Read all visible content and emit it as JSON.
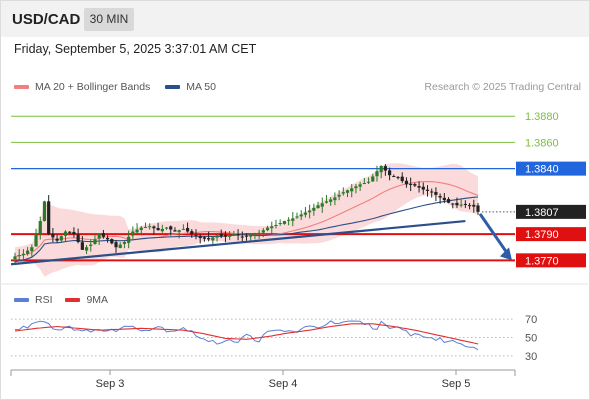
{
  "header": {
    "symbol": "USD/CAD",
    "timeframe": "30 MIN"
  },
  "datetime": "Friday, September 5, 2025 3:37:01 AM CET",
  "credit": "Research © 2025 Trading Central",
  "colors": {
    "bullish": "#2a7a2a",
    "bearish": "#222222",
    "bollinger_fill": "#f9d3d3",
    "ma20": "#f08080",
    "ma50": "#2c4f8a",
    "trendline": "#2c4f8a",
    "resistance": "#7cbf3f",
    "pivot": "#2266dd",
    "support": "#e01010",
    "last": "#222222",
    "arrow": "#2c5ea8",
    "rsi": "#5b7fd6",
    "rsi_ma": "#e03030"
  },
  "chart_data": [
    {
      "type": "candlestick",
      "legend": [
        {
          "label": "MA 20 + Bollinger Bands",
          "color": "#f08080",
          "icon": "bollinger-swatch"
        },
        {
          "label": "MA 50",
          "color": "#2c4f8a",
          "icon": "ma50-swatch"
        }
      ],
      "x_ticks": [
        "Sep 3",
        "Sep 4",
        "Sep 5"
      ],
      "ylim": [
        1.3755,
        1.39
      ],
      "levels": [
        {
          "label": "1.3880",
          "value": 1.388,
          "kind": "resistance"
        },
        {
          "label": "1.3860",
          "value": 1.386,
          "kind": "resistance"
        },
        {
          "label": "1.3840",
          "value": 1.384,
          "kind": "pivot"
        },
        {
          "label": "1.3807",
          "value": 1.3807,
          "kind": "last"
        },
        {
          "label": "1.3790",
          "value": 1.379,
          "kind": "support"
        },
        {
          "label": "1.3770",
          "value": 1.377,
          "kind": "support"
        }
      ],
      "anchors": [
        [
          0,
          1.3773
        ],
        [
          2,
          1.3775
        ],
        [
          4,
          1.378
        ],
        [
          6,
          1.38
        ],
        [
          7,
          1.3815
        ],
        [
          8,
          1.379
        ],
        [
          10,
          1.3785
        ],
        [
          12,
          1.3792
        ],
        [
          14,
          1.379
        ],
        [
          16,
          1.3778
        ],
        [
          18,
          1.3782
        ],
        [
          20,
          1.379
        ],
        [
          22,
          1.3786
        ],
        [
          24,
          1.378
        ],
        [
          26,
          1.3784
        ],
        [
          28,
          1.3792
        ],
        [
          30,
          1.3795
        ],
        [
          32,
          1.3796
        ],
        [
          34,
          1.3793
        ],
        [
          36,
          1.3795
        ],
        [
          38,
          1.3792
        ],
        [
          40,
          1.3794
        ],
        [
          42,
          1.379
        ],
        [
          44,
          1.3787
        ],
        [
          46,
          1.3786
        ],
        [
          48,
          1.3789
        ],
        [
          50,
          1.3788
        ],
        [
          52,
          1.379
        ],
        [
          54,
          1.3788
        ],
        [
          56,
          1.3789
        ],
        [
          58,
          1.3791
        ],
        [
          60,
          1.3795
        ],
        [
          62,
          1.3797
        ],
        [
          64,
          1.38
        ],
        [
          66,
          1.3802
        ],
        [
          68,
          1.3805
        ],
        [
          70,
          1.3808
        ],
        [
          72,
          1.3812
        ],
        [
          74,
          1.3815
        ],
        [
          76,
          1.3818
        ],
        [
          78,
          1.3822
        ],
        [
          80,
          1.3825
        ],
        [
          82,
          1.3828
        ],
        [
          84,
          1.383
        ],
        [
          86,
          1.3838
        ],
        [
          87,
          1.3842
        ],
        [
          89,
          1.3835
        ],
        [
          91,
          1.3833
        ],
        [
          93,
          1.3828
        ],
        [
          95,
          1.3827
        ],
        [
          97,
          1.3824
        ],
        [
          99,
          1.3822
        ],
        [
          101,
          1.3818
        ],
        [
          103,
          1.3814
        ],
        [
          105,
          1.3812
        ],
        [
          107,
          1.3813
        ],
        [
          109,
          1.3811
        ],
        [
          110,
          1.3807
        ]
      ],
      "trendline": [
        [
          0,
          1.3767
        ],
        [
          107,
          1.38
        ]
      ],
      "projection_arrow": [
        [
          110,
          1.3807
        ],
        [
          118,
          1.377
        ]
      ]
    },
    {
      "type": "line",
      "title": "RSI",
      "legend": [
        {
          "label": "RSI",
          "color": "#5b7fd6",
          "icon": "rsi-swatch"
        },
        {
          "label": "9MA",
          "color": "#e03030",
          "icon": "rsi-ma-swatch"
        }
      ],
      "y_ticks": [
        70,
        50,
        30
      ],
      "ylim": [
        20,
        80
      ],
      "rsi": [
        [
          0,
          58
        ],
        [
          3,
          62
        ],
        [
          6,
          70
        ],
        [
          8,
          65
        ],
        [
          10,
          58
        ],
        [
          13,
          63
        ],
        [
          16,
          55
        ],
        [
          19,
          60
        ],
        [
          22,
          56
        ],
        [
          25,
          60
        ],
        [
          28,
          63
        ],
        [
          31,
          58
        ],
        [
          34,
          62
        ],
        [
          37,
          57
        ],
        [
          40,
          61
        ],
        [
          43,
          53
        ],
        [
          46,
          45
        ],
        [
          48,
          44
        ],
        [
          50,
          48
        ],
        [
          53,
          46
        ],
        [
          55,
          52
        ],
        [
          58,
          47
        ],
        [
          60,
          55
        ],
        [
          63,
          58
        ],
        [
          66,
          56
        ],
        [
          69,
          60
        ],
        [
          72,
          62
        ],
        [
          75,
          66
        ],
        [
          78,
          65
        ],
        [
          81,
          67
        ],
        [
          84,
          64
        ],
        [
          86,
          58
        ],
        [
          87,
          70
        ],
        [
          89,
          58
        ],
        [
          91,
          60
        ],
        [
          94,
          54
        ],
        [
          97,
          52
        ],
        [
          100,
          48
        ],
        [
          103,
          46
        ],
        [
          106,
          44
        ],
        [
          108,
          40
        ],
        [
          110,
          39
        ]
      ],
      "ma": [
        [
          0,
          57
        ],
        [
          5,
          60
        ],
        [
          10,
          62
        ],
        [
          15,
          60
        ],
        [
          20,
          58
        ],
        [
          25,
          59
        ],
        [
          30,
          60
        ],
        [
          35,
          59
        ],
        [
          40,
          58
        ],
        [
          45,
          54
        ],
        [
          50,
          49
        ],
        [
          55,
          48
        ],
        [
          60,
          51
        ],
        [
          65,
          55
        ],
        [
          70,
          58
        ],
        [
          75,
          62
        ],
        [
          80,
          65
        ],
        [
          85,
          65
        ],
        [
          90,
          62
        ],
        [
          95,
          58
        ],
        [
          100,
          53
        ],
        [
          105,
          48
        ],
        [
          110,
          43
        ]
      ]
    }
  ]
}
